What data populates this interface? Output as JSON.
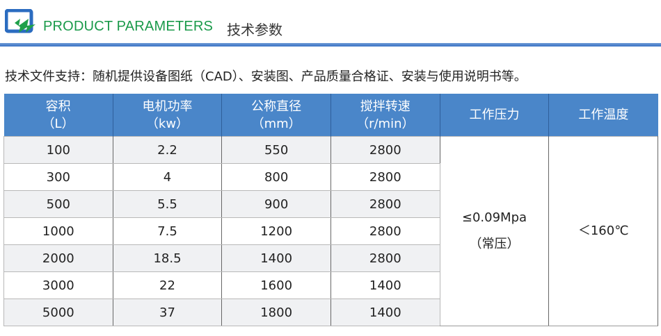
{
  "header": {
    "title_en": "PRODUCT PARAMETERS",
    "title_cn": "技术参数",
    "accent_color": "#1a9a4a",
    "rule_color": "#4a86c9",
    "logo_icon": "blue-frame-green-z-logo"
  },
  "support_text": "技术文件支持：随机提供设备图纸（CAD）、安装图、产品质量合格证、安装与使用说明书等。",
  "table": {
    "columns": [
      {
        "name": "容积",
        "unit": "（L）"
      },
      {
        "name": "电机功率",
        "unit": "（kw）"
      },
      {
        "name": "公称直径",
        "unit": "（mm）"
      },
      {
        "name": "搅拌转速",
        "unit": "（r/min）"
      },
      {
        "name": "工作压力",
        "unit": ""
      },
      {
        "name": "工作温度",
        "unit": ""
      }
    ],
    "rows": [
      [
        "100",
        "2.2",
        "550",
        "2800"
      ],
      [
        "300",
        "4",
        "800",
        "2800"
      ],
      [
        "500",
        "5.5",
        "900",
        "2800"
      ],
      [
        "1000",
        "7.5",
        "1200",
        "2800"
      ],
      [
        "2000",
        "18.5",
        "1400",
        "2800"
      ],
      [
        "3000",
        "22",
        "1600",
        "1400"
      ],
      [
        "5000",
        "37",
        "1800",
        "1400"
      ]
    ],
    "pressure": {
      "value": "≤0.09Mpa",
      "note": "（常压）"
    },
    "temperature": "＜160℃",
    "header_color": "#4a86c9"
  }
}
